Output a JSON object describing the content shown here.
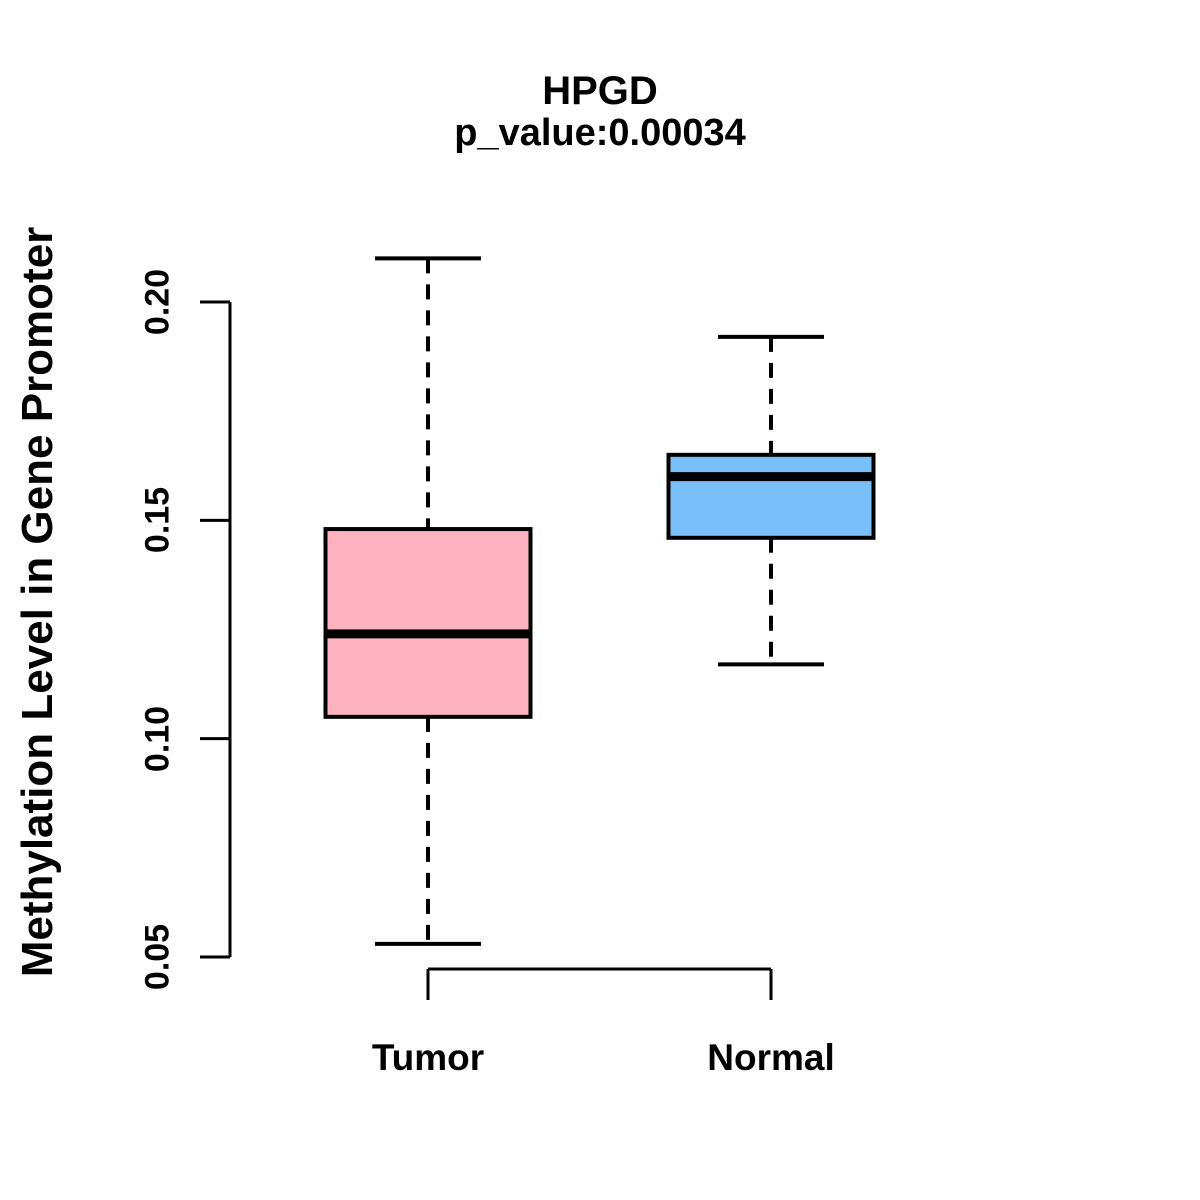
{
  "header": {
    "title": "HPGD",
    "subtitle": "p_value:0.00034"
  },
  "chart_data": {
    "type": "boxplot",
    "title": "HPGD",
    "subtitle": "p_value:0.00034",
    "ylabel": "Methylation Level in Gene Promoter",
    "xlabel": "",
    "categories": [
      "Tumor",
      "Normal"
    ],
    "series": [
      {
        "name": "Tumor",
        "fill_color": "#FFB3C1",
        "whisker_low": 0.053,
        "q1": 0.105,
        "median": 0.124,
        "q3": 0.148,
        "whisker_high": 0.21
      },
      {
        "name": "Normal",
        "fill_color": "#79BEF7",
        "whisker_low": 0.117,
        "q1": 0.146,
        "median": 0.16,
        "q3": 0.165,
        "whisker_high": 0.192
      }
    ],
    "y_axis": {
      "range": [
        0.05,
        0.2
      ],
      "ticks": [
        0.05,
        0.1,
        0.15,
        0.2
      ],
      "tick_labels": [
        "0.05",
        "0.10",
        "0.15",
        "0.20"
      ]
    },
    "grid": "off",
    "legend": "none",
    "line_color": "#000000",
    "background_color": "#FFFFFF",
    "whisker_style": "dashed"
  }
}
